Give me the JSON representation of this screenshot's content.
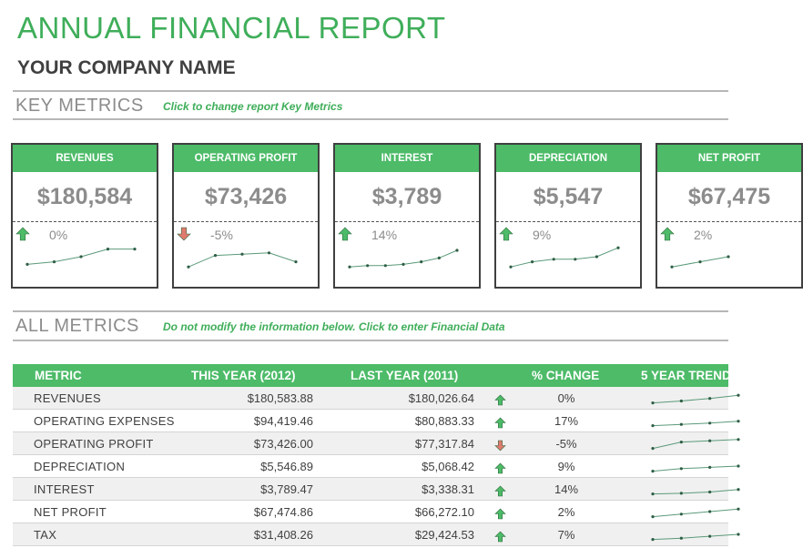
{
  "report": {
    "title": "ANNUAL FINANCIAL REPORT",
    "company": "YOUR COMPANY NAME"
  },
  "key_metrics": {
    "heading": "KEY METRICS",
    "hint": "Click to change report Key Metrics",
    "cards": [
      {
        "label": "REVENUES",
        "value": "$180,584",
        "change": "0%",
        "trend": "up",
        "spark": [
          0.2,
          0.3,
          0.5,
          0.8,
          0.8
        ]
      },
      {
        "label": "OPERATING PROFIT",
        "value": "$73,426",
        "change": "-5%",
        "trend": "down",
        "spark": [
          0.1,
          0.55,
          0.6,
          0.65,
          0.3
        ]
      },
      {
        "label": "INTEREST",
        "value": "$3,789",
        "change": "14%",
        "trend": "up",
        "spark": [
          0.1,
          0.15,
          0.15,
          0.2,
          0.3,
          0.45,
          0.75
        ]
      },
      {
        "label": "DEPRECIATION",
        "value": "$5,547",
        "change": "9%",
        "trend": "up",
        "spark": [
          0.1,
          0.3,
          0.4,
          0.4,
          0.5,
          0.85
        ]
      },
      {
        "label": "NET PROFIT",
        "value": "$67,475",
        "change": "2%",
        "trend": "up",
        "spark": [
          0.1,
          0.3,
          0.5
        ]
      }
    ]
  },
  "all_metrics": {
    "heading": "ALL METRICS",
    "hint": "Do not modify the information below. Click to enter Financial Data",
    "columns": [
      "METRIC",
      "THIS YEAR (2012)",
      "LAST YEAR (2011)",
      "% CHANGE",
      "5 YEAR TREND"
    ],
    "rows": [
      {
        "metric": "REVENUES",
        "this_year": "$180,583.88",
        "last_year": "$180,026.64",
        "trend": "up",
        "change": "0%",
        "spark": [
          0.1,
          0.25,
          0.45,
          0.7
        ]
      },
      {
        "metric": "OPERATING EXPENSES",
        "this_year": "$94,419.46",
        "last_year": "$80,883.33",
        "trend": "up",
        "change": "17%",
        "spark": [
          0.1,
          0.2,
          0.3,
          0.45
        ]
      },
      {
        "metric": "OPERATING PROFIT",
        "this_year": "$73,426.00",
        "last_year": "$77,317.84",
        "trend": "down",
        "change": "-5%",
        "spark": [
          0.1,
          0.6,
          0.7,
          0.8
        ]
      },
      {
        "metric": "DEPRECIATION",
        "this_year": "$5,546.89",
        "last_year": "$5,068.42",
        "trend": "up",
        "change": "9%",
        "spark": [
          0.1,
          0.3,
          0.4,
          0.5
        ]
      },
      {
        "metric": "INTEREST",
        "this_year": "$3,789.47",
        "last_year": "$3,338.31",
        "trend": "up",
        "change": "14%",
        "spark": [
          0.1,
          0.15,
          0.25,
          0.45
        ]
      },
      {
        "metric": "NET PROFIT",
        "this_year": "$67,474.86",
        "last_year": "$66,272.10",
        "trend": "up",
        "change": "2%",
        "spark": [
          0.1,
          0.3,
          0.5,
          0.7
        ]
      },
      {
        "metric": "TAX",
        "this_year": "$31,408.26",
        "last_year": "$29,424.53",
        "trend": "up",
        "change": "7%",
        "spark": [
          0.1,
          0.2,
          0.35,
          0.5
        ]
      }
    ]
  },
  "colors": {
    "accent": "#4dbb68",
    "up_arrow": "#4dbb68",
    "down_arrow": "#e07a6e",
    "spark_line": "#5b9a7a"
  }
}
